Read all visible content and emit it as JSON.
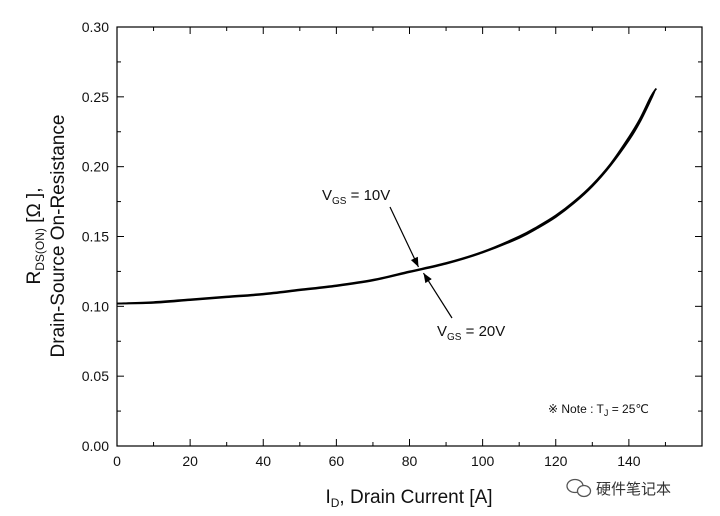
{
  "chart_data": {
    "type": "line",
    "xlabel": {
      "main": "I",
      "sub": "D",
      "rest": ", Drain Current [A]"
    },
    "ylabel": {
      "line1_main": "R",
      "line1_sub": "DS(ON)",
      "line1_rest": " [Ω ],",
      "line2": "Drain-Source On-Resistance"
    },
    "xlim": [
      0,
      160
    ],
    "ylim": [
      0,
      0.3
    ],
    "x_ticks": [
      "0",
      "20",
      "40",
      "60",
      "80",
      "100",
      "120",
      "140"
    ],
    "x_tick_values": [
      0,
      20,
      40,
      60,
      80,
      100,
      120,
      140
    ],
    "y_ticks": [
      "0.00",
      "0.05",
      "0.10",
      "0.15",
      "0.20",
      "0.25",
      "0.30"
    ],
    "y_tick_values": [
      0,
      0.05,
      0.1,
      0.15,
      0.2,
      0.25,
      0.3
    ],
    "grid": false,
    "series": [
      {
        "name": "VGS = 10V",
        "x": [
          0,
          10,
          20,
          30,
          40,
          50,
          60,
          70,
          80,
          90,
          100,
          110,
          115,
          120,
          125,
          130,
          135,
          140,
          143,
          146,
          147.5
        ],
        "y": [
          0.102,
          0.103,
          0.105,
          0.107,
          0.109,
          0.112,
          0.115,
          0.119,
          0.125,
          0.131,
          0.139,
          0.15,
          0.157,
          0.165,
          0.175,
          0.187,
          0.202,
          0.221,
          0.234,
          0.25,
          0.256
        ]
      },
      {
        "name": "VGS = 20V",
        "x": [
          0,
          10,
          20,
          30,
          40,
          50,
          60,
          70,
          80,
          90,
          100,
          110,
          115,
          120,
          125,
          130,
          135,
          140,
          143,
          146,
          147
        ],
        "y": [
          0.102,
          0.1025,
          0.1045,
          0.1065,
          0.1085,
          0.1115,
          0.1145,
          0.1185,
          0.1245,
          0.1305,
          0.1385,
          0.149,
          0.156,
          0.164,
          0.174,
          0.186,
          0.201,
          0.219,
          0.232,
          0.248,
          0.254
        ]
      }
    ],
    "annotations": [
      {
        "label_main": "V",
        "label_sub": "GS",
        "label_rest": " = 10V"
      },
      {
        "label_main": "V",
        "label_sub": "GS",
        "label_rest": " = 20V"
      }
    ],
    "note": {
      "prefix": "※ Note : T",
      "sub": "J",
      "rest": " = 25℃"
    },
    "watermark": "硬件笔记本",
    "colors": {
      "line": "#000000",
      "axis": "#000000",
      "background": "#ffffff"
    }
  }
}
